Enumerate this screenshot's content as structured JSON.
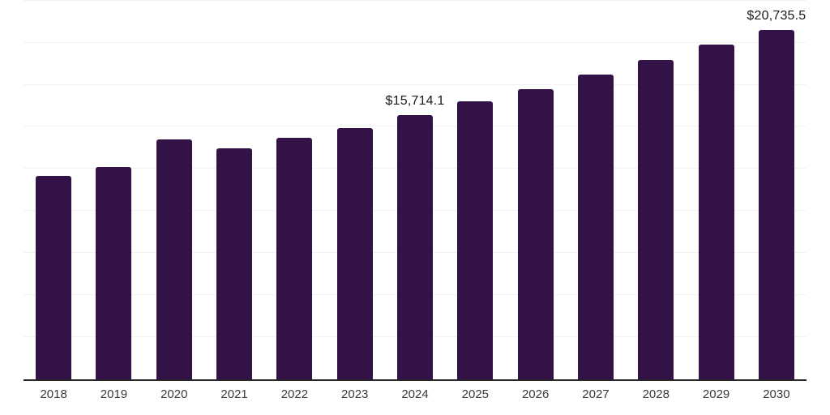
{
  "chart_data": {
    "type": "bar",
    "title": "",
    "xlabel": "",
    "ylabel": "",
    "categories": [
      "2018",
      "2019",
      "2020",
      "2021",
      "2022",
      "2023",
      "2024",
      "2025",
      "2026",
      "2027",
      "2028",
      "2029",
      "2030"
    ],
    "values": [
      12080,
      12620,
      14250,
      13740,
      14350,
      14950,
      15714.1,
      16500,
      17240,
      18100,
      18990,
      19900,
      20735.5
    ],
    "data_labels": [
      {
        "category": "2024",
        "text": "$15,714.1"
      },
      {
        "category": "2030",
        "text": "$20,735.5"
      }
    ],
    "ylim": [
      0,
      22530
    ],
    "gridline_step": 2500,
    "grid": "horizontal",
    "legend": "none",
    "y_axis_tick_labels_visible": false
  },
  "style": {
    "bar_color": "#331347",
    "gridline_color": "#f2f2f2",
    "axis_line_color": "#262626",
    "data_label_color": "#1a1a1a",
    "tick_label_color": "#3a3a3a",
    "background_color": "#ffffff"
  }
}
